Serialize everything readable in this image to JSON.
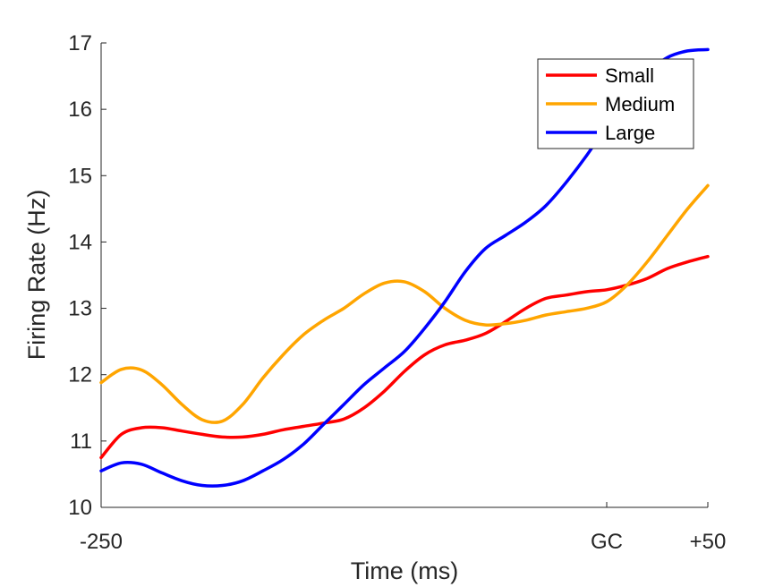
{
  "chart_data": {
    "type": "line",
    "title": "",
    "xlabel": "Time (ms)",
    "ylabel": "Firing Rate (Hz)",
    "xlim": [
      -250,
      50
    ],
    "ylim": [
      10,
      17
    ],
    "x_ticks": [
      {
        "value": -250,
        "label": "-250"
      },
      {
        "value": 0,
        "label": "GC"
      },
      {
        "value": 50,
        "label": "+50"
      }
    ],
    "y_ticks": [
      {
        "value": 10,
        "label": "10"
      },
      {
        "value": 11,
        "label": "11"
      },
      {
        "value": 12,
        "label": "12"
      },
      {
        "value": 13,
        "label": "13"
      },
      {
        "value": 14,
        "label": "14"
      },
      {
        "value": 15,
        "label": "15"
      },
      {
        "value": 16,
        "label": "16"
      },
      {
        "value": 17,
        "label": "17"
      }
    ],
    "grid": false,
    "legend_position": "top-right",
    "series": [
      {
        "name": "Small",
        "color": "#ff0000",
        "x": [
          -250,
          -240,
          -230,
          -220,
          -210,
          -200,
          -190,
          -180,
          -170,
          -160,
          -150,
          -140,
          -130,
          -120,
          -110,
          -100,
          -90,
          -80,
          -70,
          -60,
          -50,
          -40,
          -30,
          -20,
          -10,
          0,
          10,
          20,
          30,
          40,
          50
        ],
        "y": [
          10.75,
          11.1,
          11.2,
          11.2,
          11.15,
          11.1,
          11.06,
          11.06,
          11.1,
          11.17,
          11.22,
          11.27,
          11.33,
          11.5,
          11.75,
          12.05,
          12.3,
          12.45,
          12.52,
          12.62,
          12.8,
          13.0,
          13.15,
          13.2,
          13.25,
          13.28,
          13.35,
          13.45,
          13.6,
          13.7,
          13.78
        ]
      },
      {
        "name": "Medium",
        "color": "#ffa500",
        "x": [
          -250,
          -240,
          -230,
          -220,
          -210,
          -200,
          -190,
          -180,
          -170,
          -160,
          -150,
          -140,
          -130,
          -120,
          -110,
          -100,
          -90,
          -80,
          -70,
          -60,
          -50,
          -40,
          -30,
          -20,
          -10,
          0,
          10,
          20,
          30,
          40,
          50
        ],
        "y": [
          11.88,
          12.08,
          12.07,
          11.85,
          11.55,
          11.32,
          11.3,
          11.55,
          11.95,
          12.3,
          12.6,
          12.82,
          13.0,
          13.22,
          13.38,
          13.4,
          13.25,
          13.0,
          12.82,
          12.75,
          12.77,
          12.82,
          12.9,
          12.95,
          13.0,
          13.1,
          13.35,
          13.7,
          14.1,
          14.5,
          14.85
        ]
      },
      {
        "name": "Large",
        "color": "#0000ff",
        "x": [
          -250,
          -240,
          -230,
          -220,
          -210,
          -200,
          -190,
          -180,
          -170,
          -160,
          -150,
          -140,
          -130,
          -120,
          -110,
          -100,
          -90,
          -80,
          -70,
          -60,
          -50,
          -40,
          -30,
          -20,
          -10,
          0,
          10,
          20,
          30,
          40,
          50
        ],
        "y": [
          10.55,
          10.67,
          10.65,
          10.52,
          10.4,
          10.33,
          10.33,
          10.4,
          10.55,
          10.72,
          10.95,
          11.25,
          11.55,
          11.85,
          12.1,
          12.35,
          12.7,
          13.1,
          13.55,
          13.9,
          14.1,
          14.3,
          14.55,
          14.9,
          15.3,
          15.75,
          16.2,
          16.55,
          16.78,
          16.88,
          16.9
        ]
      }
    ]
  }
}
